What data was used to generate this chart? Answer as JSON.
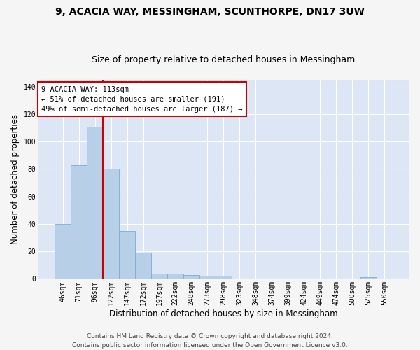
{
  "title1": "9, ACACIA WAY, MESSINGHAM, SCUNTHORPE, DN17 3UW",
  "title2": "Size of property relative to detached houses in Messingham",
  "xlabel": "Distribution of detached houses by size in Messingham",
  "ylabel": "Number of detached properties",
  "categories": [
    "46sqm",
    "71sqm",
    "96sqm",
    "122sqm",
    "147sqm",
    "172sqm",
    "197sqm",
    "222sqm",
    "248sqm",
    "273sqm",
    "298sqm",
    "323sqm",
    "348sqm",
    "374sqm",
    "399sqm",
    "424sqm",
    "449sqm",
    "474sqm",
    "500sqm",
    "525sqm",
    "550sqm"
  ],
  "values": [
    40,
    83,
    111,
    80,
    35,
    19,
    4,
    4,
    3,
    2,
    2,
    0,
    0,
    0,
    0,
    0,
    0,
    0,
    0,
    1,
    0
  ],
  "bar_color": "#b8cfe8",
  "bar_edge_color": "#7aadd4",
  "background_color": "#dce6f5",
  "grid_color": "#ffffff",
  "annotation_box_color": "#ffffff",
  "annotation_border_color": "#cc0000",
  "annotation_text_line1": "9 ACACIA WAY: 113sqm",
  "annotation_text_line2": "← 51% of detached houses are smaller (191)",
  "annotation_text_line3": "49% of semi-detached houses are larger (187) →",
  "red_line_x": 2.5,
  "ylim": [
    0,
    145
  ],
  "yticks": [
    0,
    20,
    40,
    60,
    80,
    100,
    120,
    140
  ],
  "footer1": "Contains HM Land Registry data © Crown copyright and database right 2024.",
  "footer2": "Contains public sector information licensed under the Open Government Licence v3.0.",
  "title_fontsize": 10,
  "subtitle_fontsize": 9,
  "xlabel_fontsize": 8.5,
  "ylabel_fontsize": 8.5,
  "tick_fontsize": 7,
  "annotation_fontsize": 7.5,
  "footer_fontsize": 6.5,
  "fig_bg": "#f5f5f5"
}
